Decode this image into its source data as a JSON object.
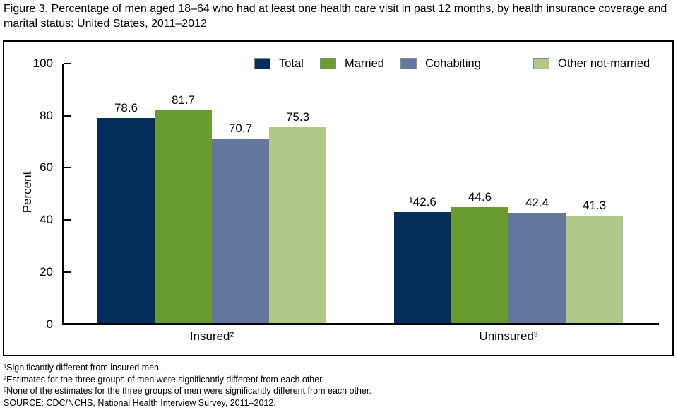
{
  "figure": {
    "title": "Figure 3. Percentage of men aged 18–64 who had at least one health care visit in past 12 months, by health insurance coverage and marital status: United States, 2011–2012",
    "footnotes": [
      "¹Significantly different from insured men.",
      "²Estimates for the three groups of men were significantly different from each other.",
      "³None of the estimates for the three groups of men were significantly different from each other.",
      "SOURCE: CDC/NCHS, National Health Interview Survey, 2011–2012."
    ]
  },
  "chart_data": {
    "type": "bar",
    "title": "Percentage of men aged 18–64 who had at least one health care visit in past 12 months, by health insurance coverage and marital status",
    "ylabel": "Percent",
    "xlabel": "",
    "ylim": [
      0,
      100
    ],
    "yticks": [
      0,
      20,
      40,
      60,
      80,
      100
    ],
    "grid": false,
    "legend_position": "top",
    "categories": [
      "Insured²",
      "Uninsured³"
    ],
    "series": [
      {
        "name": "Total",
        "color": "#032e5c",
        "values": [
          78.6,
          42.6
        ],
        "value_labels": [
          "78.6",
          "¹42.6"
        ]
      },
      {
        "name": "Married",
        "color": "#699c30",
        "values": [
          81.7,
          44.6
        ],
        "value_labels": [
          "81.7",
          "44.6"
        ]
      },
      {
        "name": "Cohabiting",
        "color": "#62769e",
        "values": [
          70.7,
          42.4
        ],
        "value_labels": [
          "70.7",
          "42.4"
        ]
      },
      {
        "name": "Other not-married",
        "color": "#b0c98a",
        "values": [
          75.3,
          41.3
        ],
        "value_labels": [
          "75.3",
          "41.3"
        ]
      }
    ],
    "axis_color": "#000000",
    "text_color": "#000000"
  }
}
